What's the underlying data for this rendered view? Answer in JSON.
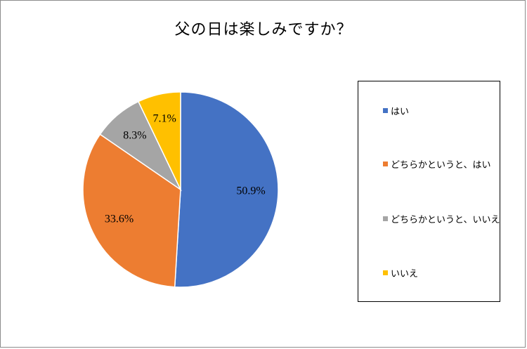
{
  "chart_data": {
    "type": "pie",
    "title": "父の日は楽しみですか？",
    "categories": [
      "はい",
      "どちらかというと、はい",
      "どちらかというと、いいえ",
      "いいえ"
    ],
    "values": [
      50.9,
      33.6,
      8.3,
      7.1
    ],
    "data_labels": [
      "50.9%",
      "33.6%",
      "8.3%",
      "7.1%"
    ],
    "colors": [
      "#4472C4",
      "#ED7D31",
      "#A5A5A5",
      "#FFC000"
    ],
    "start_angle": "12 o'clock",
    "direction": "clockwise",
    "legend_position": "right",
    "grid": false
  }
}
